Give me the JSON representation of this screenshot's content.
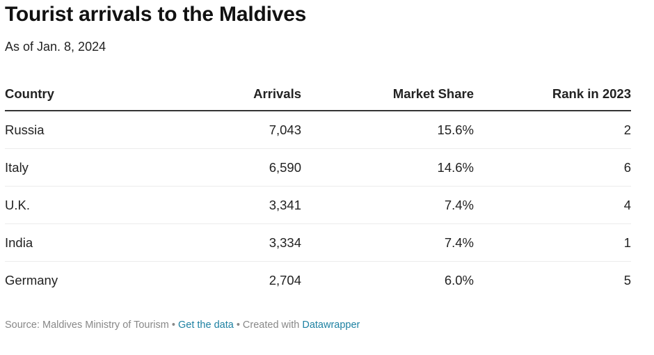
{
  "header": {
    "title": "Tourist arrivals to the Maldives",
    "subtitle": "As of Jan. 8, 2024"
  },
  "table": {
    "columns": [
      "Country",
      "Arrivals",
      "Market Share",
      "Rank in 2023"
    ],
    "rows": [
      [
        "Russia",
        "7,043",
        "15.6%",
        "2"
      ],
      [
        "Italy",
        "6,590",
        "14.6%",
        "6"
      ],
      [
        "U.K.",
        "3,341",
        "7.4%",
        "4"
      ],
      [
        "India",
        "3,334",
        "7.4%",
        "1"
      ],
      [
        "Germany",
        "2,704",
        "6.0%",
        "5"
      ]
    ]
  },
  "footer": {
    "source": "Source: Maldives Ministry of Tourism",
    "sep1": " • ",
    "get_data": "Get the data",
    "sep2": " • Created with ",
    "datawrapper": "Datawrapper"
  },
  "colors": {
    "link": "#1d81a2",
    "footer_text": "#888888",
    "header_rule": "#333333"
  },
  "chart_data": {
    "type": "table",
    "title": "Tourist arrivals to the Maldives",
    "subtitle": "As of Jan. 8, 2024",
    "columns": [
      "Country",
      "Arrivals",
      "Market Share",
      "Rank in 2023"
    ],
    "categories": [
      "Russia",
      "Italy",
      "U.K.",
      "India",
      "Germany"
    ],
    "series": [
      {
        "name": "Arrivals",
        "values": [
          7043,
          6590,
          3341,
          3334,
          2704
        ]
      },
      {
        "name": "Market Share",
        "values": [
          15.6,
          14.6,
          7.4,
          7.4,
          6.0
        ],
        "unit": "%"
      },
      {
        "name": "Rank in 2023",
        "values": [
          2,
          6,
          4,
          1,
          5
        ]
      }
    ],
    "source": "Maldives Ministry of Tourism"
  }
}
